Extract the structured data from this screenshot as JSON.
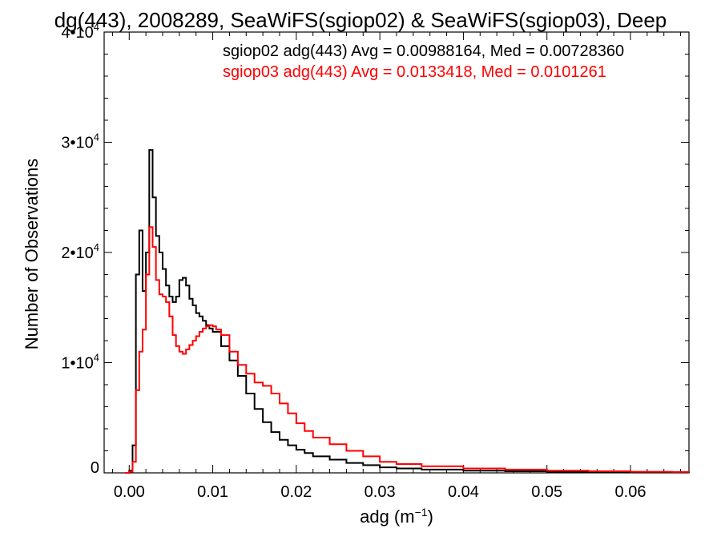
{
  "chart_data": {
    "type": "line",
    "title": "dg(443), 2008289, SeaWiFS(sgiop02) & SeaWiFS(sgiop03), Deep",
    "xlabel": "adg (m",
    "xlabel_exp": "−1",
    "xlabel_close": ")",
    "ylabel": "Number of Observations",
    "xlim": [
      -0.003,
      0.067
    ],
    "ylim": [
      0,
      40000
    ],
    "x_ticks": [
      {
        "value": 0.0,
        "label": "0.00"
      },
      {
        "value": 0.01,
        "label": "0.01"
      },
      {
        "value": 0.02,
        "label": "0.02"
      },
      {
        "value": 0.03,
        "label": "0.03"
      },
      {
        "value": 0.04,
        "label": "0.04"
      },
      {
        "value": 0.05,
        "label": "0.05"
      },
      {
        "value": 0.06,
        "label": "0.06"
      }
    ],
    "y_ticks": [
      {
        "value": 0,
        "label": "0",
        "exp": ""
      },
      {
        "value": 10000,
        "label": "1•10",
        "exp": "4"
      },
      {
        "value": 20000,
        "label": "2•10",
        "exp": "4"
      },
      {
        "value": 30000,
        "label": "3•10",
        "exp": "4"
      },
      {
        "value": 40000,
        "label": "4•10",
        "exp": "4"
      }
    ],
    "grid": false,
    "legend_position": "top-right",
    "series": [
      {
        "name": "sgiop02 adg(443) Avg = 0.00988164, Med = 0.00728360",
        "color": "#000000",
        "x": [
          -0.0005,
          0.0,
          0.0004,
          0.0008,
          0.0012,
          0.0016,
          0.002,
          0.0024,
          0.0028,
          0.0032,
          0.0036,
          0.004,
          0.0044,
          0.0048,
          0.0052,
          0.0056,
          0.006,
          0.0064,
          0.0068,
          0.0072,
          0.0076,
          0.008,
          0.0084,
          0.0088,
          0.0092,
          0.0096,
          0.01,
          0.011,
          0.012,
          0.013,
          0.014,
          0.015,
          0.016,
          0.017,
          0.018,
          0.019,
          0.02,
          0.021,
          0.022,
          0.024,
          0.026,
          0.028,
          0.03,
          0.032,
          0.035,
          0.04,
          0.045,
          0.05,
          0.055,
          0.06,
          0.065,
          0.067
        ],
        "y": [
          0,
          200,
          2500,
          18000,
          22000,
          16500,
          20000,
          29300,
          25000,
          21500,
          20000,
          18500,
          17000,
          16000,
          15500,
          16000,
          17500,
          17700,
          17000,
          15800,
          15200,
          14500,
          14200,
          13800,
          13400,
          13100,
          12800,
          11500,
          10200,
          8800,
          7200,
          5800,
          4600,
          3700,
          3000,
          2500,
          2100,
          1800,
          1500,
          1200,
          900,
          700,
          500,
          400,
          300,
          200,
          150,
          100,
          80,
          60,
          40,
          30
        ]
      },
      {
        "name": "sgiop03 adg(443) Avg = 0.0133418, Med = 0.0101261",
        "color": "#ff0000",
        "x": [
          -0.0005,
          0.0,
          0.0004,
          0.0008,
          0.0012,
          0.0016,
          0.002,
          0.0024,
          0.0028,
          0.0032,
          0.0036,
          0.004,
          0.0044,
          0.0048,
          0.0052,
          0.0056,
          0.006,
          0.0064,
          0.0068,
          0.0072,
          0.0076,
          0.008,
          0.0084,
          0.0088,
          0.0092,
          0.0096,
          0.01,
          0.0104,
          0.011,
          0.012,
          0.013,
          0.014,
          0.015,
          0.016,
          0.017,
          0.018,
          0.019,
          0.02,
          0.021,
          0.022,
          0.024,
          0.026,
          0.028,
          0.03,
          0.032,
          0.035,
          0.04,
          0.045,
          0.05,
          0.055,
          0.06,
          0.065,
          0.067
        ],
        "y": [
          0,
          100,
          1000,
          7500,
          11000,
          13000,
          18000,
          22300,
          20500,
          17500,
          16200,
          16000,
          15500,
          14200,
          12500,
          11500,
          11000,
          10800,
          11200,
          11600,
          12000,
          12400,
          12800,
          13100,
          13300,
          13400,
          13300,
          13000,
          12500,
          11000,
          9800,
          9000,
          8200,
          7900,
          7200,
          6300,
          5400,
          4500,
          3800,
          3200,
          2600,
          2000,
          1500,
          1000,
          800,
          600,
          400,
          300,
          200,
          150,
          100,
          80,
          60
        ]
      }
    ]
  }
}
